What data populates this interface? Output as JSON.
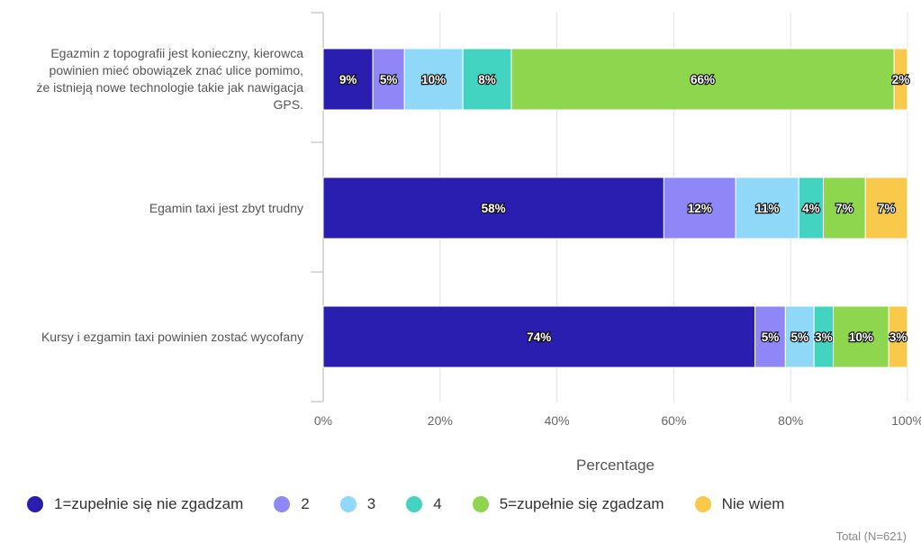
{
  "chart_data": {
    "type": "bar",
    "orientation": "horizontal",
    "stacked": true,
    "categories": [
      "Egazmin z topografii jest konieczny, kierowca powinien mieć obowiązek znać ulice pomimo, że istnieją nowe technologie takie jak nawigacja GPS.",
      "Egamin taxi jest zbyt trudny",
      "Kursy i ezgamin taxi powinien zostać wycofany"
    ],
    "category_lines": [
      [
        "Egazmin z topografii jest konieczny, kierowca",
        "powinien mieć obowiązek znać ulice pomimo,",
        "że istnieją nowe technologie takie jak nawigacja",
        "GPS."
      ],
      [
        "Egamin taxi jest zbyt trudny"
      ],
      [
        "Kursy i ezgamin taxi powinien zostać wycofany"
      ]
    ],
    "series": [
      {
        "name": "1=zupełnie się nie zgadzam",
        "color": "#2a1eb0",
        "values": [
          8.5,
          58.3,
          73.9
        ],
        "labels": [
          "9%",
          "58%",
          "74%"
        ]
      },
      {
        "name": "2",
        "color": "#8f87f7",
        "values": [
          5.4,
          12.3,
          5.2
        ],
        "labels": [
          "5%",
          "12%",
          "5%"
        ]
      },
      {
        "name": "3",
        "color": "#8fd8f8",
        "values": [
          10.0,
          10.8,
          4.9
        ],
        "labels": [
          "10%",
          "11%",
          "5%"
        ]
      },
      {
        "name": "4",
        "color": "#43d4c1",
        "values": [
          8.3,
          4.2,
          3.3
        ],
        "labels": [
          "8%",
          "4%",
          "3%"
        ]
      },
      {
        "name": "5=zupełnie się zgadzam",
        "color": "#8ed64e",
        "values": [
          65.5,
          7.2,
          9.5
        ],
        "labels": [
          "66%",
          "7%",
          "10%"
        ]
      },
      {
        "name": "Nie wiem",
        "color": "#f8c94b",
        "values": [
          2.3,
          7.2,
          3.2
        ],
        "labels": [
          "2%",
          "7%",
          "3%"
        ]
      }
    ],
    "xlim": [
      0,
      100
    ],
    "ticks": [
      "0%",
      "20%",
      "40%",
      "60%",
      "80%",
      "100%"
    ],
    "tick_values": [
      0,
      20,
      40,
      60,
      80,
      100
    ],
    "xlabel": "Percentage",
    "legend_position": "bottom",
    "note": "Total (N=621)"
  }
}
